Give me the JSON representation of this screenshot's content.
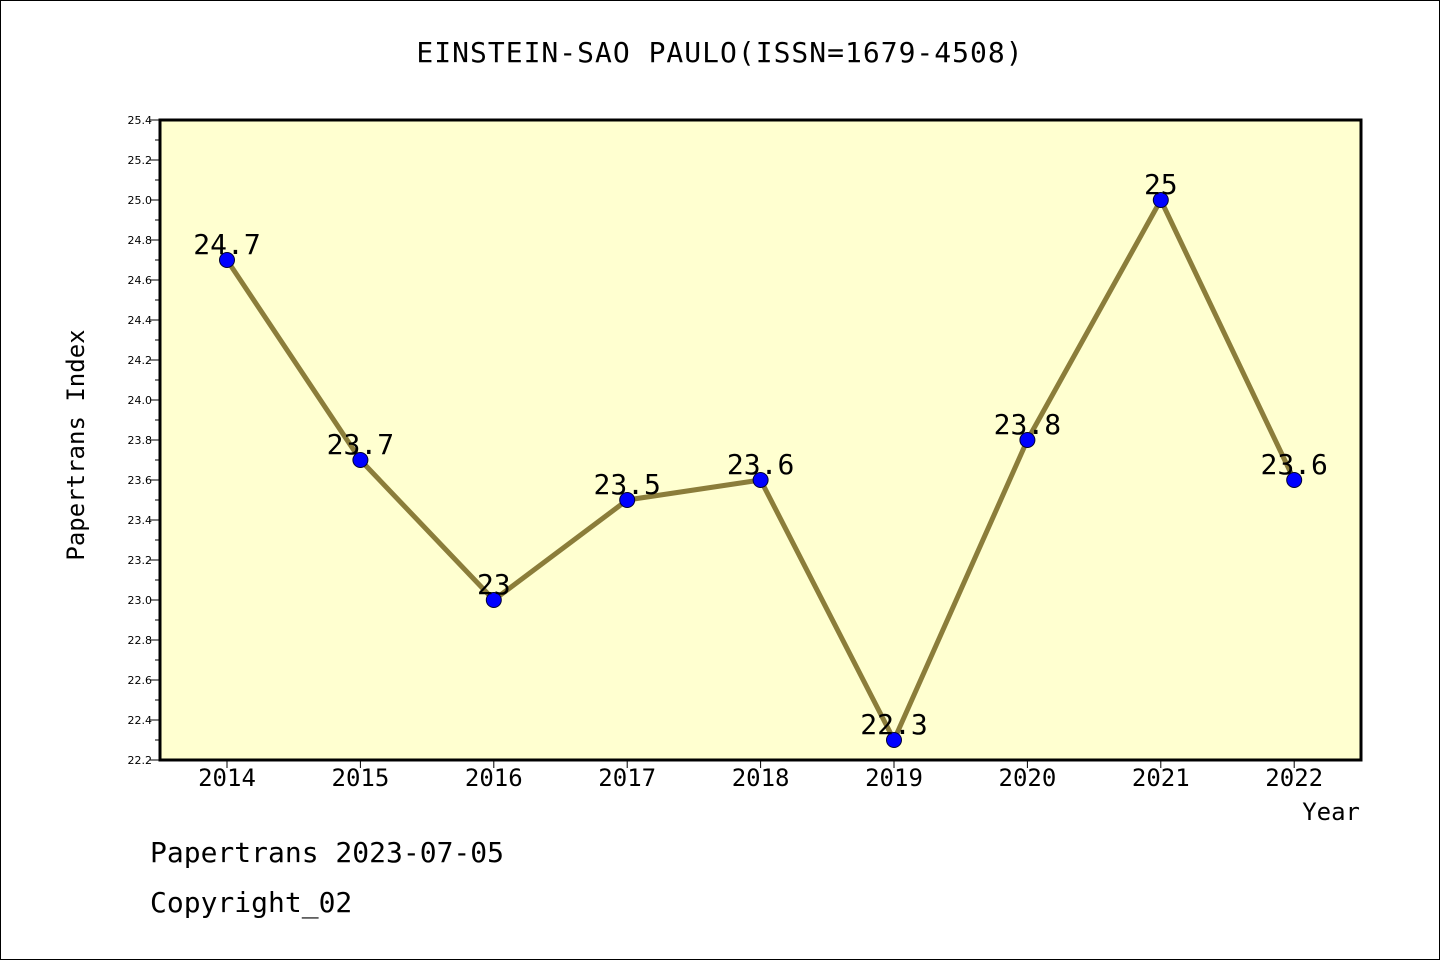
{
  "chart_data": {
    "type": "line",
    "title": "EINSTEIN-SAO PAULO(ISSN=1679-4508)",
    "xlabel": "Year",
    "ylabel": "Papertrans Index",
    "categories": [
      "2014",
      "2015",
      "2016",
      "2017",
      "2018",
      "2019",
      "2020",
      "2021",
      "2022"
    ],
    "values": [
      24.7,
      23.7,
      23.0,
      23.5,
      23.6,
      22.3,
      23.8,
      25.0,
      23.6
    ],
    "data_labels": [
      "24.7",
      "23.7",
      "23",
      "23.5",
      "23.6",
      "22.3",
      "23.8",
      "25",
      "23.6"
    ],
    "ylim": [
      22.2,
      25.4
    ],
    "yticks": [
      "22.2",
      "22.4",
      "22.6",
      "22.8",
      "23.0",
      "23.2",
      "23.4",
      "23.6",
      "23.8",
      "24.0",
      "24.2",
      "24.4",
      "24.6",
      "24.8",
      "25.0",
      "25.2",
      "25.4"
    ],
    "grid": false,
    "colors": {
      "plot_background": "#ffffd0",
      "line": "#8b7d3a",
      "marker": "#0000ff"
    }
  },
  "footer": {
    "line1": "Papertrans 2023-07-05",
    "line2": "Copyright_02"
  }
}
